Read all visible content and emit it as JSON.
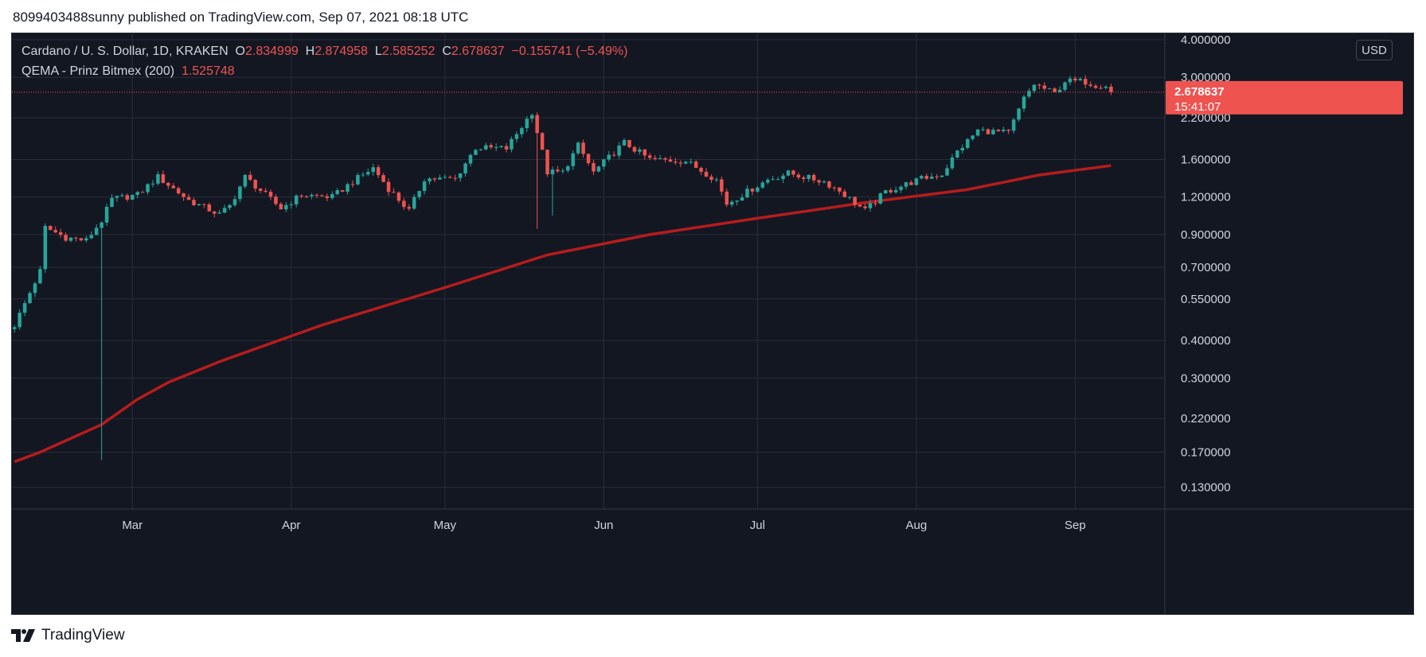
{
  "publisher_line": "8099403488sunny published on TradingView.com, Sep 07, 2021 08:18 UTC",
  "legend": {
    "symbol": "Cardano / U. S. Dollar, 1D, KRAKEN",
    "o_label": "O",
    "o": "2.834999",
    "h_label": "H",
    "h": "2.874958",
    "l_label": "L",
    "l": "2.585252",
    "c_label": "C",
    "c": "2.678637",
    "change": "−0.155741 (−5.49%)",
    "indicator": "QEMA - Prinz Bitmex (200)",
    "indicator_value": "1.525748"
  },
  "usd_button": "USD",
  "footer_brand": "TradingView",
  "colors": {
    "background": "#131722",
    "grid": "#2a2e39",
    "up": "#26a69a",
    "down": "#ef5350",
    "ema": "#b71c1c",
    "axis_text": "#d1d4dc"
  },
  "chart_data": {
    "type": "candlestick",
    "title": "Cardano / U. S. Dollar, 1D, KRAKEN",
    "y_scale": "log",
    "ylim": [
      0.11,
      4.2
    ],
    "y_ticks": [
      {
        "value": 4.0,
        "label": "4.000000"
      },
      {
        "value": 3.0,
        "label": "3.000000"
      },
      {
        "value": 2.2,
        "label": "2.200000"
      },
      {
        "value": 1.6,
        "label": "1.600000"
      },
      {
        "value": 1.2,
        "label": "1.200000"
      },
      {
        "value": 0.9,
        "label": "0.900000"
      },
      {
        "value": 0.7,
        "label": "0.700000"
      },
      {
        "value": 0.55,
        "label": "0.550000"
      },
      {
        "value": 0.4,
        "label": "0.400000"
      },
      {
        "value": 0.3,
        "label": "0.300000"
      },
      {
        "value": 0.22,
        "label": "0.220000"
      },
      {
        "value": 0.17,
        "label": "0.170000"
      },
      {
        "value": 0.13,
        "label": "0.130000"
      }
    ],
    "x_labels": [
      {
        "day": 23,
        "label": "Mar"
      },
      {
        "day": 54,
        "label": "Apr"
      },
      {
        "day": 84,
        "label": "May"
      },
      {
        "day": 115,
        "label": "Jun"
      },
      {
        "day": 145,
        "label": "Jul"
      },
      {
        "day": 176,
        "label": "Aug"
      },
      {
        "day": 207,
        "label": "Sep"
      }
    ],
    "x_range_days": [
      -0.5,
      224.5
    ],
    "last_price": {
      "value": 2.678637,
      "label": "2.678637",
      "countdown": "15:41:07"
    },
    "series": [
      {
        "name": "ADA/USD",
        "type": "candlestick",
        "key_points": [
          {
            "day": 0,
            "price": 0.45
          },
          {
            "day": 5,
            "price": 0.68
          },
          {
            "day": 6,
            "price": 0.95
          },
          {
            "day": 10,
            "price": 0.88
          },
          {
            "day": 14,
            "price": 0.86
          },
          {
            "day": 17,
            "price": 1.0
          },
          {
            "day": 19,
            "price": 1.18
          },
          {
            "day": 24,
            "price": 1.22
          },
          {
            "day": 28,
            "price": 1.4
          },
          {
            "day": 34,
            "price": 1.17
          },
          {
            "day": 40,
            "price": 1.05
          },
          {
            "day": 42,
            "price": 1.12
          },
          {
            "day": 45,
            "price": 1.4
          },
          {
            "day": 52,
            "price": 1.1
          },
          {
            "day": 56,
            "price": 1.22
          },
          {
            "day": 62,
            "price": 1.2
          },
          {
            "day": 66,
            "price": 1.35
          },
          {
            "day": 70,
            "price": 1.5
          },
          {
            "day": 73,
            "price": 1.28
          },
          {
            "day": 77,
            "price": 1.08
          },
          {
            "day": 80,
            "price": 1.38
          },
          {
            "day": 86,
            "price": 1.38
          },
          {
            "day": 90,
            "price": 1.75
          },
          {
            "day": 96,
            "price": 1.74
          },
          {
            "day": 101,
            "price": 2.3
          },
          {
            "day": 104,
            "price": 1.45
          },
          {
            "day": 107,
            "price": 1.45
          },
          {
            "day": 110,
            "price": 1.78
          },
          {
            "day": 113,
            "price": 1.45
          },
          {
            "day": 119,
            "price": 1.82
          },
          {
            "day": 124,
            "price": 1.6
          },
          {
            "day": 131,
            "price": 1.58
          },
          {
            "day": 137,
            "price": 1.37
          },
          {
            "day": 139,
            "price": 1.14
          },
          {
            "day": 147,
            "price": 1.37
          },
          {
            "day": 151,
            "price": 1.44
          },
          {
            "day": 158,
            "price": 1.35
          },
          {
            "day": 161,
            "price": 1.26
          },
          {
            "day": 166,
            "price": 1.08
          },
          {
            "day": 170,
            "price": 1.25
          },
          {
            "day": 177,
            "price": 1.38
          },
          {
            "day": 181,
            "price": 1.43
          },
          {
            "day": 184,
            "price": 1.7
          },
          {
            "day": 188,
            "price": 2.0
          },
          {
            "day": 194,
            "price": 1.96
          },
          {
            "day": 197,
            "price": 2.55
          },
          {
            "day": 199,
            "price": 2.85
          },
          {
            "day": 203,
            "price": 2.65
          },
          {
            "day": 205,
            "price": 2.92
          },
          {
            "day": 209,
            "price": 2.9
          },
          {
            "day": 211,
            "price": 2.83
          },
          {
            "day": 213,
            "price": 2.83
          },
          {
            "day": 214,
            "price": 2.678637
          }
        ],
        "notable_wicks": [
          {
            "day": 17,
            "low": 0.16
          },
          {
            "day": 102,
            "low": 0.94
          },
          {
            "day": 105,
            "low": 1.04
          }
        ]
      },
      {
        "name": "QEMA - Prinz Bitmex (200)",
        "type": "line",
        "points": [
          {
            "day": 0,
            "value": 0.158
          },
          {
            "day": 5,
            "value": 0.17
          },
          {
            "day": 17,
            "value": 0.21
          },
          {
            "day": 24,
            "value": 0.255
          },
          {
            "day": 30,
            "value": 0.29
          },
          {
            "day": 40,
            "value": 0.34
          },
          {
            "day": 60,
            "value": 0.45
          },
          {
            "day": 84,
            "value": 0.6
          },
          {
            "day": 104,
            "value": 0.77
          },
          {
            "day": 124,
            "value": 0.9
          },
          {
            "day": 145,
            "value": 1.02
          },
          {
            "day": 166,
            "value": 1.15
          },
          {
            "day": 186,
            "value": 1.27
          },
          {
            "day": 200,
            "value": 1.42
          },
          {
            "day": 214,
            "value": 1.525748
          }
        ]
      }
    ]
  }
}
